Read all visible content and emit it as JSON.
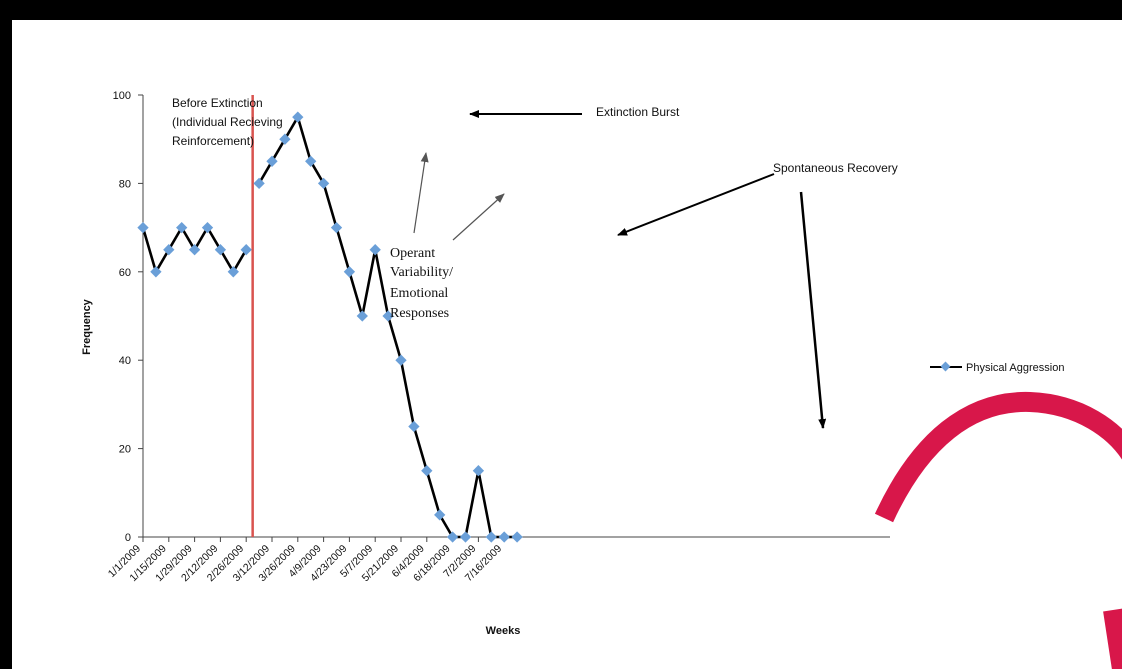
{
  "chart_data": {
    "type": "line",
    "xlabel": "Weeks",
    "ylabel": "Frequency",
    "ylim": [
      0,
      100
    ],
    "yticks": [
      "0",
      "20",
      "40",
      "60",
      "80",
      "100"
    ],
    "categories": [
      "1/1/2009",
      "1/15/2009",
      "1/29/2009",
      "2/12/2009",
      "2/26/2009",
      "3/12/2009",
      "3/26/2009",
      "4/9/2009",
      "4/23/2009",
      "5/7/2009",
      "5/21/2009",
      "6/4/2009",
      "6/18/2009",
      "7/2/2009",
      "7/16/2009"
    ],
    "legend_position": "right",
    "series": [
      {
        "name": "Physical Aggression",
        "color": "#000000",
        "marker_color": "#6a9fd8",
        "segments": [
          {
            "x_start": "1/1/2009",
            "values": [
              70,
              60,
              65,
              70,
              65,
              70,
              65,
              60,
              65
            ]
          },
          {
            "x_start": "3/5/2009",
            "values": [
              80,
              85,
              90,
              95,
              85,
              80,
              70,
              60,
              50,
              65,
              50,
              40,
              25,
              15,
              5,
              0,
              0,
              15,
              0,
              0,
              0
            ]
          }
        ]
      }
    ],
    "phase_line": {
      "between": [
        "2/26/2009",
        "3/5/2009"
      ],
      "color": "#d9534f"
    },
    "annotations": {
      "before": [
        "Before Extinction",
        "(Individual Recieving",
        "Reinforcement)"
      ],
      "burst": "Extinction Burst",
      "operant": [
        "Operant",
        "Variability/",
        "Emotional",
        "Responses"
      ],
      "recovery": "Spontaneous Recovery"
    }
  },
  "decoration": {
    "arc_color": "#d8174a"
  }
}
